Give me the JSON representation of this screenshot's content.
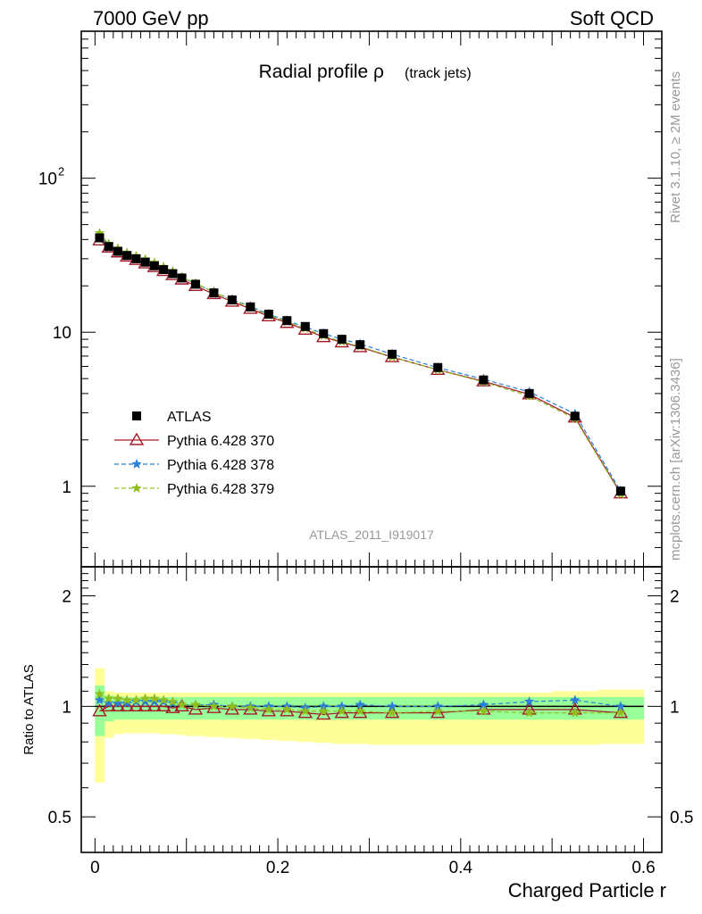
{
  "header": {
    "energy_label": "7000 GeV pp",
    "category_label": "Soft QCD"
  },
  "side_text": {
    "rivet": "Rivet 3.1.10, ≥ 2M events",
    "site": "mcplots.cern.ch [arXiv:1306.3436]"
  },
  "chart_data": [
    {
      "type": "line",
      "title_main": "Radial profile ρ",
      "title_sub": "(track jets)",
      "analysis_label": "ATLAS_2011_I919017",
      "yscale": "log",
      "xlim": [
        -0.015,
        0.62
      ],
      "ylim": [
        0.3,
        900
      ],
      "ytick_labels": [
        "1",
        "10",
        "10"
      ],
      "ytick_exponent": "2",
      "legend_position": "bottom-left",
      "x": [
        0.005,
        0.015,
        0.025,
        0.035,
        0.045,
        0.055,
        0.065,
        0.075,
        0.085,
        0.095,
        0.11,
        0.13,
        0.15,
        0.17,
        0.19,
        0.21,
        0.23,
        0.25,
        0.27,
        0.29,
        0.325,
        0.375,
        0.425,
        0.475,
        0.525,
        0.575
      ],
      "series": [
        {
          "name": "ATLAS",
          "color": "#000000",
          "marker": "square",
          "values": [
            41.0,
            36.0,
            33.5,
            31.5,
            30.0,
            28.5,
            27.0,
            25.5,
            24.0,
            22.5,
            20.5,
            18.0,
            16.2,
            14.6,
            13.1,
            11.9,
            10.9,
            9.8,
            9.0,
            8.3,
            7.2,
            5.9,
            4.9,
            4.0,
            2.85,
            0.93
          ]
        },
        {
          "name": "Pythia 6.428 370",
          "color": "#a31a2a",
          "marker": "triangle",
          "values": [
            39.5,
            35.5,
            33.0,
            31.0,
            29.5,
            28.0,
            26.5,
            25.0,
            23.5,
            22.0,
            20.0,
            17.7,
            15.8,
            14.2,
            12.7,
            11.5,
            10.4,
            9.3,
            8.6,
            8.0,
            6.9,
            5.7,
            4.8,
            3.95,
            2.8,
            0.9
          ]
        },
        {
          "name": "Pythia 6.428 378",
          "color": "#2b7fd6",
          "marker": "star",
          "values": [
            42.5,
            36.8,
            34.2,
            32.2,
            30.8,
            29.5,
            27.8,
            26.2,
            24.6,
            22.7,
            20.7,
            18.2,
            16.3,
            14.7,
            13.1,
            11.9,
            10.8,
            9.8,
            9.0,
            8.4,
            7.2,
            5.9,
            4.95,
            4.1,
            2.95,
            0.93
          ]
        },
        {
          "name": "Pythia 6.428 379",
          "color": "#8fbf1f",
          "marker": "star",
          "values": [
            44.0,
            37.5,
            35.0,
            32.8,
            31.2,
            29.8,
            28.3,
            26.6,
            24.9,
            22.8,
            20.8,
            18.2,
            16.2,
            14.5,
            12.9,
            11.7,
            10.6,
            9.5,
            8.7,
            8.1,
            6.9,
            5.7,
            4.75,
            3.85,
            2.75,
            0.89
          ]
        }
      ]
    },
    {
      "type": "line",
      "ylabel": "Ratio to ATLAS",
      "xlabel": "Charged Particle r",
      "yscale": "log",
      "xlim": [
        -0.015,
        0.62
      ],
      "ylim": [
        0.4,
        2.4
      ],
      "ytick_labels": [
        "0.5",
        "1",
        "2"
      ],
      "xtick_labels": [
        "0",
        "0.2",
        "0.4",
        "0.6"
      ],
      "x": [
        0.005,
        0.015,
        0.025,
        0.035,
        0.045,
        0.055,
        0.065,
        0.075,
        0.085,
        0.095,
        0.11,
        0.13,
        0.15,
        0.17,
        0.19,
        0.21,
        0.23,
        0.25,
        0.27,
        0.29,
        0.325,
        0.375,
        0.425,
        0.475,
        0.525,
        0.575
      ],
      "band_bins": [
        0.0,
        0.01,
        0.02,
        0.03,
        0.04,
        0.05,
        0.06,
        0.07,
        0.08,
        0.09,
        0.1,
        0.12,
        0.14,
        0.16,
        0.18,
        0.2,
        0.22,
        0.24,
        0.26,
        0.28,
        0.3,
        0.35,
        0.4,
        0.45,
        0.5,
        0.55,
        0.6
      ],
      "band_inner": {
        "color": "#99ff99",
        "lo": [
          0.83,
          0.91,
          0.92,
          0.92,
          0.92,
          0.92,
          0.92,
          0.92,
          0.92,
          0.92,
          0.92,
          0.92,
          0.92,
          0.92,
          0.92,
          0.92,
          0.92,
          0.92,
          0.92,
          0.92,
          0.92,
          0.92,
          0.92,
          0.92,
          0.92,
          0.92
        ],
        "hi": [
          1.14,
          1.07,
          1.06,
          1.06,
          1.06,
          1.06,
          1.06,
          1.06,
          1.06,
          1.06,
          1.06,
          1.06,
          1.06,
          1.06,
          1.06,
          1.06,
          1.06,
          1.06,
          1.06,
          1.06,
          1.06,
          1.06,
          1.06,
          1.06,
          1.06,
          1.06
        ]
      },
      "band_outer": {
        "color": "#ffff99",
        "lo": [
          0.62,
          0.82,
          0.84,
          0.845,
          0.845,
          0.845,
          0.845,
          0.84,
          0.84,
          0.835,
          0.83,
          0.825,
          0.82,
          0.815,
          0.81,
          0.805,
          0.8,
          0.795,
          0.79,
          0.79,
          0.785,
          0.785,
          0.785,
          0.785,
          0.785,
          0.79
        ],
        "hi": [
          1.27,
          1.1,
          1.09,
          1.09,
          1.09,
          1.09,
          1.09,
          1.09,
          1.09,
          1.09,
          1.09,
          1.09,
          1.09,
          1.09,
          1.09,
          1.09,
          1.09,
          1.09,
          1.09,
          1.09,
          1.09,
          1.09,
          1.09,
          1.09,
          1.1,
          1.11
        ]
      },
      "series": [
        {
          "name": "Pythia 6.428 370",
          "color": "#a31a2a",
          "marker": "triangle",
          "values": [
            0.97,
            1.0,
            1.0,
            1.0,
            1.0,
            1.0,
            1.0,
            1.0,
            0.99,
            1.0,
            0.98,
            0.99,
            0.98,
            0.98,
            0.97,
            0.97,
            0.96,
            0.95,
            0.96,
            0.96,
            0.96,
            0.96,
            0.98,
            0.98,
            0.98,
            0.96
          ]
        },
        {
          "name": "Pythia 6.428 378",
          "color": "#2b7fd6",
          "marker": "star",
          "values": [
            1.04,
            1.02,
            1.02,
            1.02,
            1.03,
            1.03,
            1.03,
            1.03,
            1.02,
            1.01,
            1.01,
            1.01,
            1.0,
            1.0,
            1.0,
            1.0,
            0.99,
            1.0,
            1.0,
            1.01,
            1.0,
            1.0,
            1.01,
            1.03,
            1.04,
            1.0
          ]
        },
        {
          "name": "Pythia 6.428 379",
          "color": "#8fbf1f",
          "marker": "star",
          "values": [
            1.08,
            1.05,
            1.05,
            1.04,
            1.04,
            1.05,
            1.05,
            1.04,
            1.03,
            1.01,
            1.01,
            1.0,
            1.0,
            0.99,
            0.98,
            0.98,
            0.97,
            0.97,
            0.97,
            0.97,
            0.96,
            0.97,
            0.97,
            0.96,
            0.96,
            0.96
          ]
        }
      ]
    }
  ]
}
